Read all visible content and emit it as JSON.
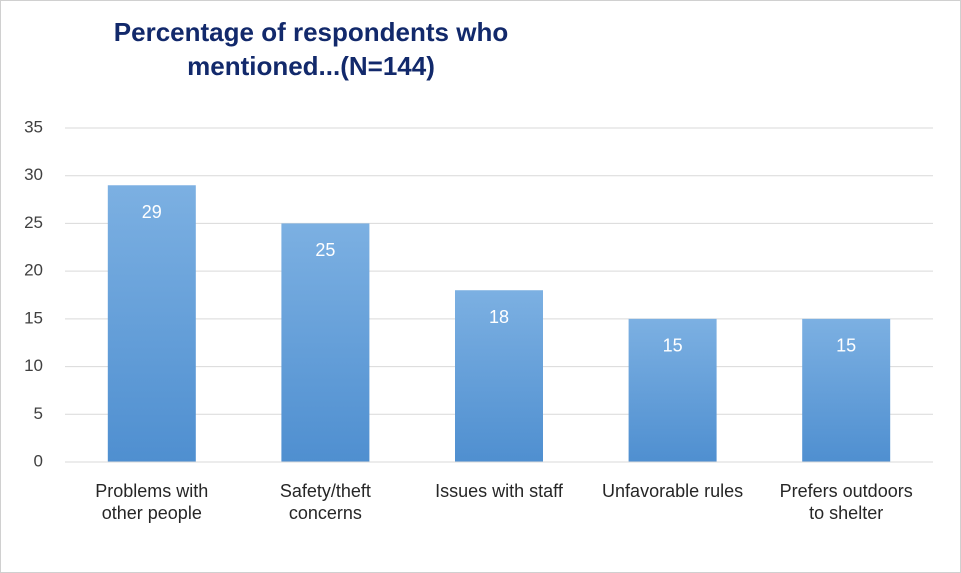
{
  "chart_data": {
    "type": "bar",
    "title": "Percentage of respondents who mentioned...(N=144)",
    "categories": [
      "Problems with other people",
      "Safety/theft concerns",
      "Issues with staff",
      "Unfavorable rules",
      "Prefers outdoors to shelter"
    ],
    "values": [
      29,
      25,
      18,
      15,
      15
    ],
    "color": "#5b9bd5",
    "ylim": [
      0,
      35
    ],
    "yticks": [
      0,
      5,
      10,
      15,
      20,
      25,
      30,
      35
    ],
    "grid": true
  }
}
